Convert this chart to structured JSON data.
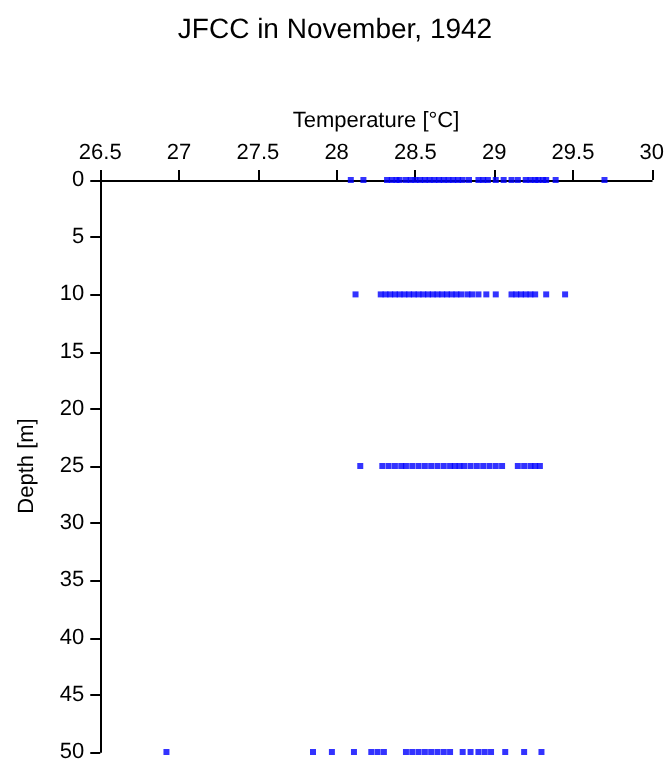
{
  "chart_data": {
    "type": "scatter",
    "title": "JFCC in November, 1942",
    "xlabel": "Temperature [°C]",
    "ylabel": "Depth [m]",
    "xlim": [
      26.5,
      30
    ],
    "xticks": [
      26.5,
      27,
      27.5,
      28,
      28.5,
      29,
      29.5,
      30
    ],
    "ylim": [
      50,
      0
    ],
    "yticks": [
      0,
      5,
      10,
      15,
      20,
      25,
      30,
      35,
      40,
      45,
      50
    ],
    "marker": "square",
    "series": [
      {
        "color": "#0000ff",
        "x": [
          28.09,
          28.17,
          28.32,
          28.35,
          28.38,
          28.4,
          28.44,
          28.47,
          28.5,
          28.53,
          28.56,
          28.59,
          28.62,
          28.65,
          28.68,
          28.71,
          28.74,
          28.77,
          28.8,
          28.84,
          28.9,
          28.93,
          28.96,
          29.01,
          29.06,
          29.11,
          29.15,
          29.2,
          29.23,
          29.26,
          29.28,
          29.31,
          29.33,
          29.39,
          29.7,
          28.12,
          28.28,
          28.31,
          28.34,
          28.37,
          28.4,
          28.43,
          28.46,
          28.49,
          28.52,
          28.55,
          28.58,
          28.61,
          28.64,
          28.67,
          28.7,
          28.73,
          28.76,
          28.79,
          28.83,
          28.86,
          28.9,
          28.95,
          29.01,
          29.11,
          29.14,
          29.17,
          29.2,
          29.23,
          29.26,
          29.33,
          29.45,
          28.15,
          28.29,
          28.33,
          28.37,
          28.41,
          28.44,
          28.48,
          28.52,
          28.56,
          28.6,
          28.64,
          28.68,
          28.72,
          28.75,
          28.78,
          28.81,
          28.85,
          28.89,
          28.93,
          28.97,
          29.01,
          29.05,
          29.15,
          29.19,
          29.23,
          29.26,
          29.29,
          26.92,
          27.85,
          27.97,
          28.11,
          28.22,
          28.26,
          28.3,
          28.44,
          28.48,
          28.52,
          28.56,
          28.6,
          28.64,
          28.68,
          28.72,
          28.8,
          28.85,
          28.9,
          28.94,
          28.98,
          29.07,
          29.19,
          29.3
        ],
        "values": [
          0,
          0,
          0,
          0,
          0,
          0,
          0,
          0,
          0,
          0,
          0,
          0,
          0,
          0,
          0,
          0,
          0,
          0,
          0,
          0,
          0,
          0,
          0,
          0,
          0,
          0,
          0,
          0,
          0,
          0,
          0,
          0,
          0,
          0,
          0,
          10,
          10,
          10,
          10,
          10,
          10,
          10,
          10,
          10,
          10,
          10,
          10,
          10,
          10,
          10,
          10,
          10,
          10,
          10,
          10,
          10,
          10,
          10,
          10,
          10,
          10,
          10,
          10,
          10,
          10,
          10,
          10,
          25,
          25,
          25,
          25,
          25,
          25,
          25,
          25,
          25,
          25,
          25,
          25,
          25,
          25,
          25,
          25,
          25,
          25,
          25,
          25,
          25,
          25,
          25,
          25,
          25,
          25,
          25,
          50,
          50,
          50,
          50,
          50,
          50,
          50,
          50,
          50,
          50,
          50,
          50,
          50,
          50,
          50,
          50,
          50,
          50,
          50,
          50,
          50,
          50,
          50
        ]
      }
    ]
  }
}
